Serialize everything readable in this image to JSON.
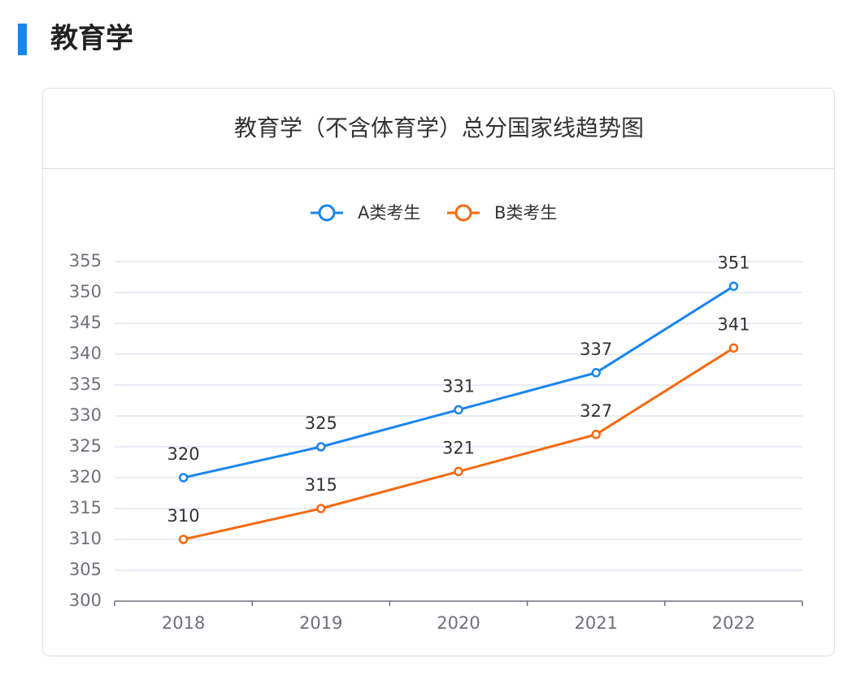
{
  "header": {
    "title": "教育学"
  },
  "chart_data": {
    "type": "line",
    "title": "教育学（不含体育学）总分国家线趋势图",
    "categories": [
      "2018",
      "2019",
      "2020",
      "2021",
      "2022"
    ],
    "series": [
      {
        "name": "A类考生",
        "color": "#1a85f0",
        "values": [
          320,
          325,
          331,
          337,
          351
        ]
      },
      {
        "name": "B类考生",
        "color": "#f56a11",
        "values": [
          310,
          315,
          321,
          327,
          341
        ]
      }
    ],
    "ylim": [
      300,
      355
    ],
    "yticks": [
      300,
      305,
      310,
      315,
      320,
      325,
      330,
      335,
      340,
      345,
      350,
      355
    ],
    "grid": true,
    "legend": "top"
  }
}
